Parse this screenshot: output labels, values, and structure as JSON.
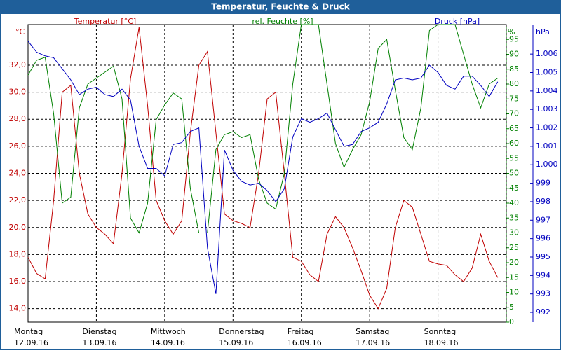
{
  "chart_data": {
    "type": "line",
    "title": "Temperatur, Feuchte & Druck",
    "xlim": [
      0,
      7
    ],
    "xticks": [
      {
        "value": 0,
        "label": "Montag",
        "date": "12.09.16"
      },
      {
        "value": 1,
        "label": "Dienstag",
        "date": "13.09.16"
      },
      {
        "value": 2,
        "label": "Mittwoch",
        "date": "14.09.16"
      },
      {
        "value": 3,
        "label": "Donnerstag",
        "date": "15.09.16"
      },
      {
        "value": 4,
        "label": "Freitag",
        "date": "16.09.16"
      },
      {
        "value": 5,
        "label": "Samstag",
        "date": "17.09.16"
      },
      {
        "value": 6,
        "label": "Sonntag",
        "date": "18.09.16"
      }
    ],
    "x": [
      0,
      0.125,
      0.25,
      0.375,
      0.5,
      0.625,
      0.75,
      0.875,
      1,
      1.125,
      1.25,
      1.375,
      1.5,
      1.625,
      1.75,
      1.875,
      2,
      2.125,
      2.25,
      2.375,
      2.5,
      2.625,
      2.75,
      2.875,
      3,
      3.125,
      3.25,
      3.375,
      3.5,
      3.625,
      3.75,
      3.875,
      4,
      4.125,
      4.25,
      4.375,
      4.5,
      4.625,
      4.75,
      4.875,
      5,
      5.125,
      5.25,
      5.375,
      5.5,
      5.625,
      5.75,
      5.875,
      6,
      6.125,
      6.25,
      6.375,
      6.5,
      6.625,
      6.75,
      6.875
    ],
    "ylabel": "°C",
    "ylim": [
      13,
      35
    ],
    "yticks": [
      {
        "value": 14,
        "label": "14,0"
      },
      {
        "value": 16,
        "label": "16,0"
      },
      {
        "value": 18,
        "label": "18,0"
      },
      {
        "value": 20,
        "label": "20,0"
      },
      {
        "value": 22,
        "label": "22,0"
      },
      {
        "value": 24,
        "label": "24,0"
      },
      {
        "value": 26,
        "label": "26,0"
      },
      {
        "value": 28,
        "label": "28,0"
      },
      {
        "value": 30,
        "label": "30,0"
      },
      {
        "value": 32,
        "label": "32,0"
      }
    ],
    "y2label": "%",
    "y2lim": [
      0,
      100
    ],
    "y2ticks": [
      0,
      5,
      10,
      15,
      20,
      25,
      30,
      35,
      40,
      45,
      50,
      55,
      60,
      65,
      70,
      75,
      80,
      85,
      90,
      95
    ],
    "y3label": "hPa",
    "y3lim": [
      991.47,
      1007.6
    ],
    "y3ticks": [
      992,
      993,
      994,
      995,
      996,
      997,
      998,
      999,
      {
        "value": 1000,
        "label": "1.000"
      },
      {
        "value": 1001,
        "label": "1.001"
      },
      {
        "value": 1002,
        "label": "1.002"
      },
      {
        "value": 1003,
        "label": "1.003"
      },
      {
        "value": 1004,
        "label": "1.004"
      },
      {
        "value": 1005,
        "label": "1.005"
      },
      {
        "value": 1006,
        "label": "1.006"
      }
    ],
    "grid": true,
    "series": [
      {
        "name": "Temperatur [°C]",
        "color": "#c00000",
        "axis": "y",
        "values": [
          17.8,
          16.6,
          16.2,
          22,
          30,
          30.5,
          24,
          21,
          20,
          19.5,
          18.8,
          24,
          31,
          34.8,
          29,
          22,
          20.5,
          19.5,
          20.5,
          27,
          32,
          33,
          27,
          21,
          20.5,
          20.3,
          20,
          24,
          29.5,
          30,
          24,
          17.8,
          17.5,
          16.5,
          16,
          19.5,
          20.8,
          20,
          18.5,
          16.8,
          15,
          14,
          15.5,
          20,
          22,
          21.5,
          19.5,
          17.5,
          17.3,
          17.2,
          16.5,
          16,
          17,
          19.5,
          17.5,
          16.3
        ]
      },
      {
        "name": "rel. Feuchte [%]",
        "color": "#008000",
        "axis": "y2",
        "values": [
          83,
          88,
          89,
          70,
          40,
          42,
          72,
          80,
          82,
          84,
          86,
          75,
          35,
          30,
          40,
          68,
          73,
          77,
          75,
          45,
          30,
          30,
          58,
          63,
          64,
          62,
          63,
          48,
          40,
          38,
          50,
          80,
          100,
          100,
          100,
          80,
          60,
          52,
          58,
          63,
          74,
          92,
          95,
          78,
          62,
          58,
          72,
          98,
          100,
          100,
          100,
          90,
          80,
          72,
          80,
          82
        ]
      },
      {
        "name": "Druck [hPa]",
        "color": "#0000c0",
        "axis": "y3",
        "values": [
          1006.7,
          1006.1,
          1005.9,
          1005.8,
          1005.2,
          1004.6,
          1003.8,
          1004.1,
          1004.2,
          1003.8,
          1003.7,
          1004.1,
          1003.5,
          1001.0,
          999.8,
          999.8,
          999.4,
          1001.1,
          1001.2,
          1001.8,
          1002.0,
          995.5,
          993,
          1000.8,
          999.7,
          999.1,
          998.9,
          999.0,
          998.6,
          998.0,
          998.7,
          1001.5,
          1002.5,
          1002.3,
          1002.5,
          1002.8,
          1001.9,
          1001.0,
          1001.1,
          1001.8,
          1002.0,
          1002.3,
          1003.3,
          1004.6,
          1004.7,
          1004.6,
          1004.7,
          1005.4,
          1005.0,
          1004.3,
          1004.1,
          1004.8,
          1004.8,
          1004.3,
          1003.7,
          1004.5
        ]
      }
    ]
  }
}
